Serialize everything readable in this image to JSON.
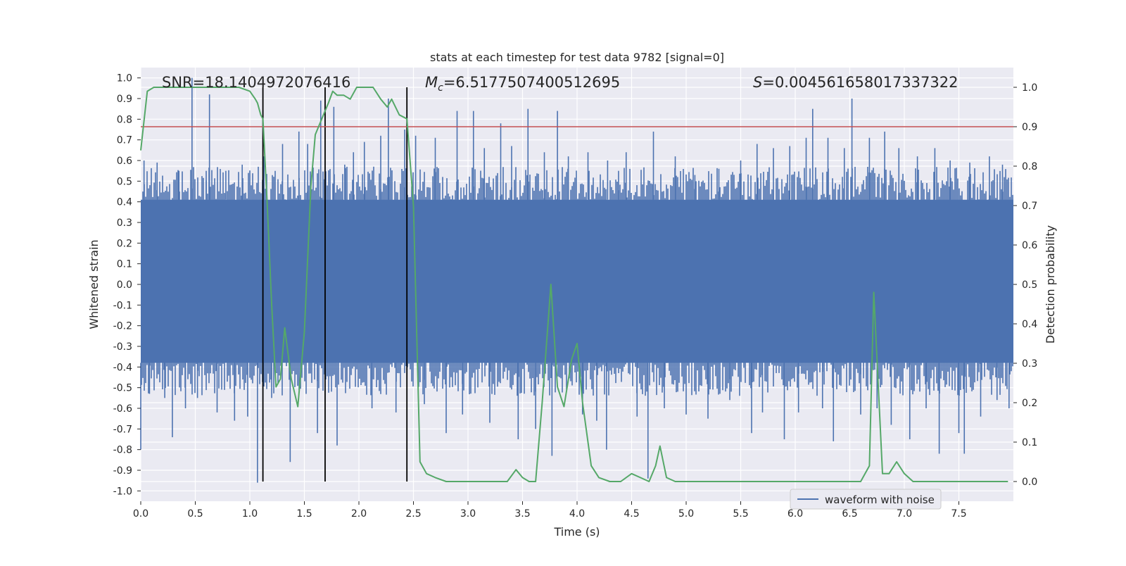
{
  "chart_data": {
    "type": "line",
    "title": "stats at each timestep for test data 9782 [signal=0]",
    "xlabel": "Time (s)",
    "ylabel_left": "Whitened strain",
    "ylabel_right": "Detection probability",
    "xlim": [
      0.0,
      8.0
    ],
    "ylim_left": [
      -1.05,
      1.05
    ],
    "ylim_right": [
      -0.05,
      1.05
    ],
    "x_ticks": [
      0.0,
      0.5,
      1.0,
      1.5,
      2.0,
      2.5,
      3.0,
      3.5,
      4.0,
      4.5,
      5.0,
      5.5,
      6.0,
      6.5,
      7.0,
      7.5
    ],
    "y_ticks_left": [
      -1.0,
      -0.9,
      -0.8,
      -0.7,
      -0.6,
      -0.5,
      -0.4,
      -0.3,
      -0.2,
      -0.1,
      0.0,
      0.1,
      0.2,
      0.3,
      0.4,
      0.5,
      0.6,
      0.7,
      0.8,
      0.9,
      1.0
    ],
    "y_ticks_right": [
      0.0,
      0.1,
      0.2,
      0.3,
      0.4,
      0.5,
      0.6,
      0.7,
      0.8,
      0.9,
      1.0
    ],
    "grid": true,
    "annotations": {
      "snr": "SNR=18.1404972076416",
      "mc_symbol": "M",
      "mc_sub": "c",
      "mc_value": "=6.5177507400512695",
      "s_symbol": "S",
      "s_value": "=0.004561658017337322"
    },
    "legend": {
      "label": "waveform with noise",
      "location": "lower-right"
    },
    "threshold": {
      "axis": "right",
      "value": 0.9,
      "color": "#c44e52"
    },
    "vertical_markers": [
      1.12,
      1.69,
      2.44
    ],
    "waveform": {
      "name": "waveform with noise",
      "axis": "left",
      "color": "#4c72b0",
      "dense_band": [
        -0.38,
        0.41
      ],
      "spikes": [
        [
          0.0,
          -0.8
        ],
        [
          0.03,
          0.6
        ],
        [
          0.08,
          -0.53
        ],
        [
          0.15,
          0.59
        ],
        [
          0.22,
          -0.55
        ],
        [
          0.29,
          -0.74
        ],
        [
          0.35,
          0.55
        ],
        [
          0.41,
          -0.6
        ],
        [
          0.47,
          1.0
        ],
        [
          0.52,
          -0.55
        ],
        [
          0.6,
          0.55
        ],
        [
          0.63,
          0.92
        ],
        [
          0.7,
          -0.62
        ],
        [
          0.78,
          0.55
        ],
        [
          0.86,
          -0.66
        ],
        [
          0.93,
          0.58
        ],
        [
          0.98,
          -0.64
        ],
        [
          1.07,
          -0.96
        ],
        [
          1.13,
          0.62
        ],
        [
          1.2,
          -0.55
        ],
        [
          1.3,
          0.68
        ],
        [
          1.37,
          -0.86
        ],
        [
          1.45,
          0.74
        ],
        [
          1.53,
          0.68
        ],
        [
          1.62,
          -0.72
        ],
        [
          1.65,
          0.89
        ],
        [
          1.77,
          0.86
        ],
        [
          1.8,
          -0.78
        ],
        [
          1.87,
          0.58
        ],
        [
          1.95,
          0.64
        ],
        [
          2.05,
          0.69
        ],
        [
          2.12,
          -0.6
        ],
        [
          2.2,
          0.72
        ],
        [
          2.27,
          0.9
        ],
        [
          2.34,
          -0.62
        ],
        [
          2.42,
          0.75
        ],
        [
          2.52,
          0.72
        ],
        [
          2.6,
          -0.58
        ],
        [
          2.7,
          0.71
        ],
        [
          2.8,
          -0.72
        ],
        [
          2.9,
          0.84
        ],
        [
          2.95,
          -0.63
        ],
        [
          3.05,
          0.84
        ],
        [
          3.15,
          0.66
        ],
        [
          3.2,
          -0.67
        ],
        [
          3.3,
          0.78
        ],
        [
          3.4,
          0.67
        ],
        [
          3.46,
          -0.75
        ],
        [
          3.55,
          0.85
        ],
        [
          3.62,
          -0.7
        ],
        [
          3.7,
          0.64
        ],
        [
          3.77,
          -0.83
        ],
        [
          3.82,
          0.84
        ],
        [
          3.92,
          0.62
        ],
        [
          4.05,
          -0.63
        ],
        [
          4.1,
          0.64
        ],
        [
          4.18,
          -0.66
        ],
        [
          4.28,
          0.6
        ],
        [
          4.27,
          -0.8
        ],
        [
          4.38,
          0.55
        ],
        [
          4.45,
          0.64
        ],
        [
          4.55,
          -0.64
        ],
        [
          4.65,
          -0.94
        ],
        [
          4.7,
          0.74
        ],
        [
          4.8,
          -0.6
        ],
        [
          4.9,
          0.62
        ],
        [
          5.0,
          -0.63
        ],
        [
          5.08,
          0.53
        ],
        [
          5.2,
          -0.65
        ],
        [
          5.3,
          0.56
        ],
        [
          5.4,
          -0.56
        ],
        [
          5.5,
          0.6
        ],
        [
          5.6,
          -0.72
        ],
        [
          5.65,
          0.68
        ],
        [
          5.7,
          -0.62
        ],
        [
          5.8,
          0.66
        ],
        [
          5.9,
          -0.75
        ],
        [
          5.95,
          0.67
        ],
        [
          6.03,
          -0.62
        ],
        [
          6.1,
          0.71
        ],
        [
          6.16,
          0.85
        ],
        [
          6.25,
          -0.6
        ],
        [
          6.3,
          0.71
        ],
        [
          6.35,
          -0.76
        ],
        [
          6.45,
          0.66
        ],
        [
          6.52,
          0.9
        ],
        [
          6.6,
          -0.63
        ],
        [
          6.68,
          0.71
        ],
        [
          6.75,
          -0.6
        ],
        [
          6.82,
          0.74
        ],
        [
          6.88,
          -0.68
        ],
        [
          6.95,
          0.66
        ],
        [
          7.05,
          -0.75
        ],
        [
          7.12,
          0.62
        ],
        [
          7.2,
          -0.6
        ],
        [
          7.28,
          0.66
        ],
        [
          7.32,
          -0.82
        ],
        [
          7.42,
          0.6
        ],
        [
          7.5,
          -0.72
        ],
        [
          7.55,
          -0.82
        ],
        [
          7.6,
          0.59
        ],
        [
          7.7,
          -0.64
        ],
        [
          7.78,
          0.62
        ],
        [
          7.85,
          -0.56
        ],
        [
          7.9,
          0.58
        ],
        [
          7.96,
          -0.6
        ]
      ]
    },
    "probability": {
      "name": "detection probability",
      "axis": "right",
      "color": "#55a868",
      "x": [
        0.0,
        0.06,
        0.12,
        0.2,
        0.3,
        0.45,
        0.6,
        0.8,
        0.9,
        1.0,
        1.05,
        1.07,
        1.1,
        1.12,
        1.16,
        1.2,
        1.24,
        1.28,
        1.32,
        1.38,
        1.44,
        1.5,
        1.56,
        1.6,
        1.66,
        1.72,
        1.76,
        1.8,
        1.86,
        1.92,
        1.98,
        2.04,
        2.08,
        2.13,
        2.2,
        2.26,
        2.3,
        2.37,
        2.44,
        2.5,
        2.56,
        2.62,
        2.7,
        2.8,
        2.9,
        3.0,
        3.1,
        3.2,
        3.28,
        3.36,
        3.44,
        3.5,
        3.56,
        3.62,
        3.68,
        3.76,
        3.82,
        3.88,
        3.95,
        4.0,
        4.05,
        4.13,
        4.2,
        4.3,
        4.4,
        4.5,
        4.58,
        4.66,
        4.72,
        4.76,
        4.82,
        4.9,
        5.0,
        5.2,
        5.5,
        5.8,
        6.0,
        6.12,
        6.3,
        6.45,
        6.5,
        6.6,
        6.68,
        6.72,
        6.8,
        6.86,
        6.93,
        7.0,
        7.08,
        7.2,
        7.3,
        7.45,
        7.6,
        7.8,
        7.95
      ],
      "y": [
        0.84,
        0.99,
        1.0,
        1.0,
        1.0,
        1.0,
        1.0,
        1.0,
        1.0,
        0.99,
        0.97,
        0.96,
        0.93,
        0.92,
        0.7,
        0.45,
        0.24,
        0.26,
        0.39,
        0.26,
        0.19,
        0.38,
        0.75,
        0.88,
        0.92,
        0.96,
        0.99,
        0.98,
        0.98,
        0.97,
        1.0,
        1.0,
        1.0,
        1.0,
        0.97,
        0.95,
        0.97,
        0.93,
        0.92,
        0.7,
        0.05,
        0.02,
        0.01,
        0.0,
        0.0,
        0.0,
        0.0,
        0.0,
        0.0,
        0.0,
        0.03,
        0.01,
        0.0,
        0.0,
        0.2,
        0.5,
        0.24,
        0.19,
        0.31,
        0.35,
        0.2,
        0.04,
        0.01,
        0.0,
        0.0,
        0.02,
        0.01,
        0.0,
        0.04,
        0.09,
        0.01,
        0.0,
        0.0,
        0.0,
        0.0,
        0.0,
        0.0,
        0.0,
        0.0,
        0.0,
        0.0,
        0.0,
        0.04,
        0.48,
        0.02,
        0.02,
        0.05,
        0.02,
        0.0,
        0.0,
        0.0,
        0.0,
        0.0,
        0.0,
        0.0
      ]
    }
  }
}
